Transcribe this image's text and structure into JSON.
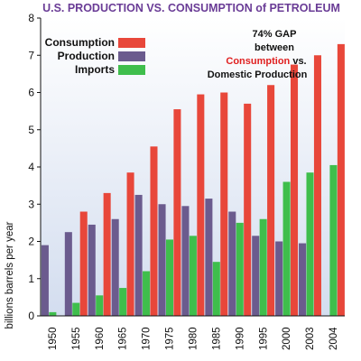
{
  "colors": {
    "consumption": "#e8473a",
    "production": "#6b5b8e",
    "imports": "#3fbe4c",
    "background_top": "#ffffff",
    "background_bottom": "#d3ddef",
    "title": "#6a3c96",
    "annotation_red": "#e02020",
    "annotation_purple": "#6a2a90"
  },
  "chart_data": {
    "type": "bar",
    "title": "U.S. PRODUCTION VS. CONSUMPTION of PETROLEUM",
    "xlabel": "",
    "ylabel": "billions barrels per year",
    "ylim": [
      0,
      8
    ],
    "yticks": [
      0,
      1,
      2,
      3,
      4,
      5,
      6,
      7,
      8
    ],
    "grid": false,
    "legend_position": "top-left",
    "categories": [
      "1950",
      "1955",
      "1960",
      "1965",
      "1970",
      "1975",
      "1980",
      "1985",
      "1990",
      "1995",
      "2000",
      "2003",
      "2004"
    ],
    "series": [
      {
        "name": "Consumption",
        "color_key": "consumption",
        "values": [
          null,
          2.8,
          3.3,
          3.85,
          4.55,
          5.55,
          5.95,
          6.0,
          5.7,
          6.2,
          6.75,
          7.0,
          7.3
        ]
      },
      {
        "name": "Production",
        "color_key": "production",
        "values": [
          1.9,
          2.25,
          2.45,
          2.6,
          3.25,
          3.0,
          2.95,
          3.15,
          2.8,
          2.15,
          2.0,
          1.95,
          null
        ]
      },
      {
        "name": "Imports",
        "color_key": "imports",
        "values": [
          0.1,
          0.35,
          0.55,
          0.75,
          1.2,
          2.05,
          2.15,
          1.45,
          2.5,
          2.6,
          3.6,
          3.85,
          4.05
        ]
      }
    ],
    "annotation": {
      "line1": "74% GAP",
      "line2": "between",
      "line3_red": "Consumption",
      "line3_black": " vs.",
      "line4": "Domestic Production"
    }
  }
}
